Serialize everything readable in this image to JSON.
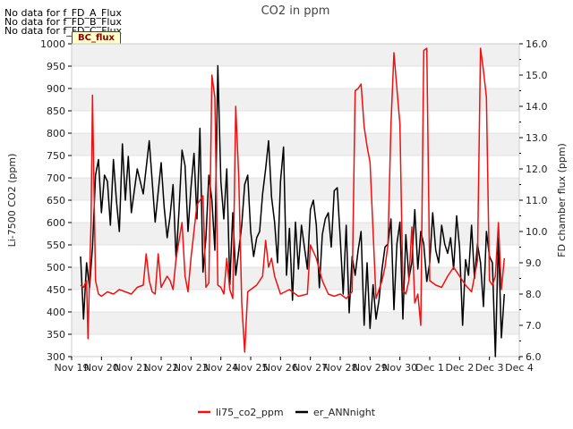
{
  "notices": [
    "No data for f_FD_A_Flux",
    "No data for f_FD_B_Flux",
    "No data for f_FD_C_Flux"
  ],
  "badge": "BC_flux",
  "colors": {
    "co2": "#ee1111",
    "ann": "#000000",
    "band": "#f0f0f0",
    "grid": "#dcdcdc"
  },
  "chart_data": {
    "type": "line",
    "title": "CO2 in ppm",
    "xlabel": "",
    "ylabel": "Li-7500 CO2 (ppm)",
    "y2label": "FD chamber flux (ppm)",
    "x_ticks": [
      "Nov 19",
      "Nov 20",
      "Nov 21",
      "Nov 22",
      "Nov 23",
      "Nov 24",
      "Nov 25",
      "Nov 26",
      "Nov 27",
      "Nov 28",
      "Nov 29",
      "Nov 30",
      "Dec 1",
      "Dec 2",
      "Dec 3",
      "Dec 4"
    ],
    "xlim": [
      0,
      15
    ],
    "ylim": [
      300,
      1000
    ],
    "yticks": [
      300,
      350,
      400,
      450,
      500,
      550,
      600,
      650,
      700,
      750,
      800,
      850,
      900,
      950,
      1000
    ],
    "y2lim": [
      6.0,
      16.0
    ],
    "y2ticks": [
      "6.0",
      "7.0",
      "8.0",
      "9.0",
      "10.0",
      "11.0",
      "12.0",
      "13.0",
      "14.0",
      "15.0",
      "16.0"
    ],
    "legend": [
      "li75_co2_ppm",
      "er_ANNnight"
    ],
    "legend_position": "bottom-center",
    "series": [
      {
        "name": "li75_co2_ppm",
        "axis": "left",
        "x": [
          0.3,
          0.4,
          0.5,
          0.55,
          0.6,
          0.65,
          0.7,
          0.8,
          0.9,
          1.0,
          1.2,
          1.4,
          1.6,
          1.8,
          2.0,
          2.2,
          2.4,
          2.5,
          2.6,
          2.7,
          2.8,
          2.9,
          3.0,
          3.2,
          3.3,
          3.4,
          3.5,
          3.6,
          3.7,
          3.8,
          3.9,
          4.0,
          4.2,
          4.4,
          4.5,
          4.6,
          4.7,
          4.8,
          4.9,
          5.0,
          5.1,
          5.2,
          5.3,
          5.4,
          5.5,
          5.6,
          5.7,
          5.8,
          5.9,
          6.0,
          6.2,
          6.4,
          6.5,
          6.6,
          6.7,
          6.8,
          7.0,
          7.3,
          7.6,
          7.9,
          8.0,
          8.2,
          8.4,
          8.6,
          8.8,
          9.0,
          9.2,
          9.4,
          9.5,
          9.6,
          9.7,
          9.8,
          9.9,
          10.0,
          10.2,
          10.4,
          10.5,
          10.6,
          10.7,
          10.8,
          10.9,
          11.0,
          11.1,
          11.2,
          11.3,
          11.4,
          11.5,
          11.6,
          11.7,
          11.8,
          11.9,
          12.0,
          12.2,
          12.4,
          12.6,
          12.8,
          13.0,
          13.2,
          13.4,
          13.5,
          13.6,
          13.7,
          13.8,
          13.9,
          14.0,
          14.1,
          14.2,
          14.3,
          14.4,
          14.5
        ],
        "values": [
          460,
          455,
          470,
          340,
          480,
          600,
          885,
          470,
          440,
          435,
          445,
          440,
          450,
          445,
          440,
          455,
          460,
          530,
          470,
          445,
          440,
          530,
          455,
          480,
          470,
          450,
          520,
          560,
          600,
          480,
          445,
          520,
          640,
          660,
          455,
          465,
          930,
          880,
          460,
          455,
          440,
          520,
          450,
          430,
          860,
          700,
          420,
          310,
          445,
          450,
          460,
          480,
          560,
          500,
          520,
          480,
          440,
          450,
          435,
          440,
          550,
          520,
          470,
          440,
          435,
          440,
          430,
          445,
          895,
          900,
          910,
          815,
          770,
          735,
          430,
          470,
          500,
          550,
          820,
          980,
          900,
          820,
          450,
          440,
          470,
          590,
          420,
          440,
          370,
          985,
          990,
          470,
          460,
          455,
          480,
          500,
          480,
          460,
          445,
          480,
          515,
          990,
          940,
          880,
          470,
          460,
          480,
          600,
          450,
          520
        ]
      },
      {
        "name": "er_ANNnight",
        "axis": "right",
        "x": [
          0.3,
          0.4,
          0.5,
          0.6,
          0.7,
          0.8,
          0.9,
          1.0,
          1.1,
          1.2,
          1.3,
          1.4,
          1.5,
          1.6,
          1.7,
          1.8,
          1.9,
          2.0,
          2.2,
          2.4,
          2.6,
          2.8,
          3.0,
          3.1,
          3.2,
          3.3,
          3.4,
          3.5,
          3.6,
          3.7,
          3.8,
          3.9,
          4.0,
          4.1,
          4.2,
          4.3,
          4.4,
          4.5,
          4.6,
          4.7,
          4.8,
          4.9,
          5.0,
          5.1,
          5.2,
          5.3,
          5.4,
          5.5,
          5.6,
          5.7,
          5.8,
          5.9,
          6.0,
          6.1,
          6.2,
          6.3,
          6.4,
          6.5,
          6.6,
          6.7,
          6.8,
          6.9,
          7.0,
          7.1,
          7.2,
          7.3,
          7.4,
          7.5,
          7.6,
          7.7,
          7.8,
          7.9,
          8.0,
          8.1,
          8.2,
          8.3,
          8.4,
          8.5,
          8.6,
          8.7,
          8.8,
          8.9,
          9.0,
          9.1,
          9.2,
          9.3,
          9.4,
          9.5,
          9.6,
          9.7,
          9.8,
          9.9,
          10.0,
          10.1,
          10.2,
          10.3,
          10.4,
          10.5,
          10.6,
          10.7,
          10.8,
          10.9,
          11.0,
          11.1,
          11.2,
          11.3,
          11.4,
          11.5,
          11.6,
          11.7,
          11.8,
          11.9,
          12.0,
          12.1,
          12.2,
          12.3,
          12.4,
          12.5,
          12.6,
          12.7,
          12.8,
          12.9,
          13.0,
          13.1,
          13.2,
          13.3,
          13.4,
          13.5,
          13.6,
          13.7,
          13.8,
          13.9,
          14.0,
          14.1,
          14.2,
          14.3,
          14.4,
          14.5
        ],
        "values": [
          9.2,
          7.2,
          9.0,
          8.2,
          9.5,
          11.8,
          12.3,
          10.6,
          11.8,
          11.6,
          10.2,
          12.3,
          11.0,
          10.0,
          12.8,
          11.0,
          12.4,
          10.6,
          12.0,
          11.2,
          12.9,
          10.3,
          12.2,
          10.8,
          9.8,
          10.5,
          11.5,
          9.1,
          10.7,
          12.6,
          12.1,
          10.0,
          11.4,
          12.5,
          10.4,
          13.3,
          8.7,
          9.8,
          11.8,
          11.0,
          9.4,
          15.3,
          11.6,
          10.4,
          12.0,
          8.3,
          10.6,
          8.6,
          9.4,
          10.2,
          11.5,
          11.8,
          10.0,
          9.2,
          9.8,
          10.0,
          11.2,
          12.0,
          12.9,
          11.1,
          10.3,
          9.0,
          11.6,
          12.7,
          8.6,
          10.1,
          7.8,
          10.3,
          8.8,
          10.2,
          9.5,
          8.8,
          10.7,
          11.0,
          10.2,
          8.2,
          9.9,
          10.4,
          10.6,
          9.5,
          11.3,
          11.4,
          9.8,
          8.0,
          10.2,
          7.4,
          9.2,
          8.6,
          9.4,
          10.0,
          7.0,
          9.0,
          6.9,
          8.3,
          7.2,
          7.8,
          8.8,
          9.5,
          9.6,
          10.4,
          7.5,
          9.6,
          10.3,
          7.2,
          9.9,
          8.5,
          9.0,
          10.7,
          8.8,
          10.0,
          9.6,
          8.4,
          9.0,
          10.6,
          9.4,
          9.0,
          10.2,
          9.6,
          9.3,
          9.8,
          8.8,
          10.5,
          9.5,
          7.0,
          9.1,
          8.6,
          10.2,
          8.5,
          9.6,
          9.0,
          7.6,
          10.0,
          9.2,
          9.0,
          6.0,
          9.8,
          6.6,
          8.0
        ]
      }
    ]
  }
}
